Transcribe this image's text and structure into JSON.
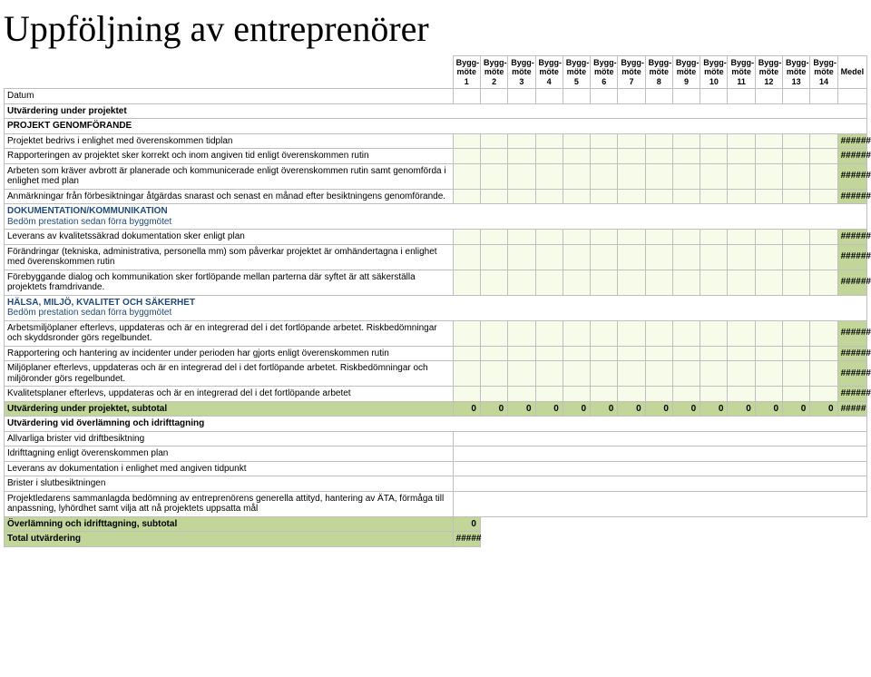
{
  "title": "Uppföljning av entreprenörer",
  "columns": [
    "Bygg-möte 1",
    "Bygg-möte 2",
    "Bygg-möte 3",
    "Bygg-möte 4",
    "Bygg-möte 5",
    "Bygg-möte 6",
    "Bygg-möte 7",
    "Bygg-möte 8",
    "Bygg-möte 9",
    "Bygg-möte 10",
    "Bygg-möte 11",
    "Bygg-möte 12",
    "Bygg-möte 13",
    "Bygg-möte 14"
  ],
  "medel_label": "Medel",
  "datum_label": "Datum",
  "section1_header": "Utvärdering under projektet",
  "cat1": "PROJEKT GENOMFÖRANDE",
  "cat1_rows": [
    "Projektet bedrivs i enlighet med överenskommen tidplan",
    "Rapporteringen av projektet sker korrekt och inom angiven tid enligt överenskommen rutin",
    "Arbeten som kräver avbrott är planerade och kommunicerade enligt överenskommen rutin samt genomförda i enlighet med plan",
    "Anmärkningar från förbesiktningar åtgärdas snarast och senast en månad efter besiktningens genomförande."
  ],
  "cat2": "DOKUMENTATION/KOMMUNIKATION",
  "cat2_sub": "Bedöm prestation sedan förra byggmötet",
  "cat2_rows": [
    "Leverans av kvalitetssäkrad dokumentation sker enligt plan",
    "Förändringar (tekniska, administrativa, personella mm) som påverkar projektet är omhändertagna i enlighet med överenskommen rutin",
    "Förebyggande dialog och kommunikation sker fortlöpande mellan parterna där syftet är att säkerställa projektets framdrivande."
  ],
  "cat3": "HÄLSA, MILJÖ, KVALITET OCH SÄKERHET",
  "cat3_sub": "Bedöm prestation sedan förra byggmötet",
  "cat3_rows": [
    "Arbetsmiljöplaner efterlevs, uppdateras och är en integrerad del i det fortlöpande arbetet. Riskbedömningar och skyddsronder görs regelbundet.",
    "Rapportering och hantering av incidenter under perioden har gjorts enligt överenskommen rutin",
    "Miljöplaner efterlevs, uppdateras och är en integrerad del i det fortlöpande arbetet. Riskbedömningar och miljöronder görs regelbundet.",
    "Kvalitetsplaner efterlevs, uppdateras och är en integrerad del i det fortlöpande arbetet"
  ],
  "subtotal1_label": "Utvärdering under projektet, subtotal",
  "subtotal1_values": [
    "0",
    "0",
    "0",
    "0",
    "0",
    "0",
    "0",
    "0",
    "0",
    "0",
    "0",
    "0",
    "0",
    "0"
  ],
  "subtotal1_medel": "#####",
  "section2_header": "Utvärdering vid överlämning och idrifttagning",
  "sec2_rows": [
    "Allvarliga brister vid driftbesiktning",
    "Idrifttagning enligt överenskommen plan",
    "Leverans av dokumentation i enlighet med angiven tidpunkt",
    "Brister i slutbesiktningen",
    "Projektledarens sammanlagda bedömning av entreprenörens generella attityd, hantering av ÄTA, förmåga till anpassning, lyhördhet samt vilja att nå projektets uppsatta mål"
  ],
  "subtotal2_label": "Överlämning och idrifttagning, subtotal",
  "subtotal2_value": "0",
  "total_label": "Total utvärdering",
  "total_value": "#####",
  "hash_fill": "#######",
  "colors": {
    "green": "#c2d69a",
    "light": "#f7fbea",
    "border": "#bfbfbf",
    "blue_text": "#1f497d"
  }
}
